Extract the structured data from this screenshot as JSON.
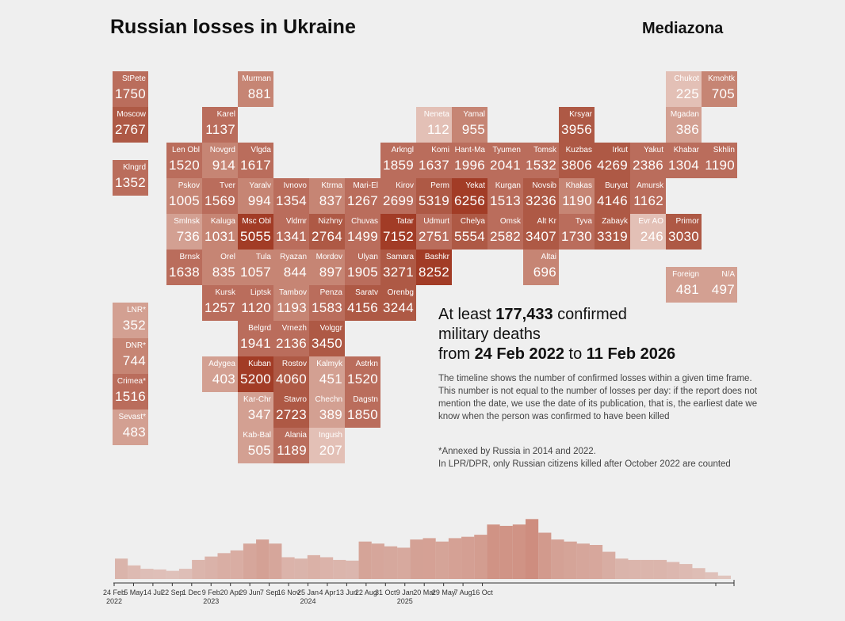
{
  "title": "Russian losses in Ukraine",
  "brand": "Mediazona",
  "headline": {
    "p1": "At least ",
    "total": "177,433",
    "p2": " confirmed",
    "p3": "military deaths",
    "p4": "from ",
    "start": "24 Feb 2022",
    "p5": " to ",
    "end": "11 Feb 2026"
  },
  "note": "The timeline shows the number of confirmed losses within a given time frame. This number is not equal to the number of losses per day: if the report does not mention the date, we use the date of its publication, that is, the earliest date we know when the person was confirmed to have been killed",
  "note2a": "*Annexed by Russia in 2014 and 2022.",
  "note2b": "In LPR/DPR, only Russian citizens killed after October 2022 are counted",
  "colors": {
    "shades": [
      "#e3c0b6",
      "#d3a092",
      "#c68574",
      "#ba6d5c",
      "#ae5945",
      "#a23c26"
    ],
    "bars": "#c9806f"
  },
  "chart_data": [
    {
      "type": "heatmap",
      "subtype": "tile-map",
      "regions": [
        {
          "name": "StPete",
          "value": 1750,
          "shade": 3
        },
        {
          "name": "Moscow",
          "value": 2767,
          "shade": 4
        },
        {
          "name": "Klngrd",
          "value": 1352,
          "shade": 3
        },
        {
          "name": "Murman",
          "value": 881,
          "shade": 2
        },
        {
          "name": "Karel",
          "value": 1137,
          "shade": 3
        },
        {
          "name": "Len Obl",
          "value": 1520,
          "shade": 3
        },
        {
          "name": "Novgrd",
          "value": 914,
          "shade": 2
        },
        {
          "name": "Vlgda",
          "value": 1617,
          "shade": 3
        },
        {
          "name": "Pskov",
          "value": 1005,
          "shade": 2
        },
        {
          "name": "Tver",
          "value": 1569,
          "shade": 3
        },
        {
          "name": "Yaralv",
          "value": 994,
          "shade": 2
        },
        {
          "name": "Ivnovo",
          "value": 1354,
          "shade": 3
        },
        {
          "name": "Ktrma",
          "value": 837,
          "shade": 2
        },
        {
          "name": "Mari-El",
          "value": 1267,
          "shade": 3
        },
        {
          "name": "Smlnsk",
          "value": 736,
          "shade": 1
        },
        {
          "name": "Kaluga",
          "value": 1031,
          "shade": 2
        },
        {
          "name": "Msc Obl",
          "value": 5055,
          "shade": 5
        },
        {
          "name": "Vldmr",
          "value": 1341,
          "shade": 3
        },
        {
          "name": "Nizhny",
          "value": 2764,
          "shade": 4
        },
        {
          "name": "Chuvas",
          "value": 1499,
          "shade": 3
        },
        {
          "name": "Brnsk",
          "value": 1638,
          "shade": 3
        },
        {
          "name": "Orel",
          "value": 835,
          "shade": 2
        },
        {
          "name": "Tula",
          "value": 1057,
          "shade": 2
        },
        {
          "name": "Ryazan",
          "value": 844,
          "shade": 2
        },
        {
          "name": "Mordov",
          "value": 897,
          "shade": 2
        },
        {
          "name": "Ulyan",
          "value": 1905,
          "shade": 3
        },
        {
          "name": "Kursk",
          "value": 1257,
          "shade": 3
        },
        {
          "name": "Liptsk",
          "value": 1120,
          "shade": 3
        },
        {
          "name": "Tambov",
          "value": 1193,
          "shade": 2
        },
        {
          "name": "Penza",
          "value": 1583,
          "shade": 3
        },
        {
          "name": "Saratv",
          "value": 4156,
          "shade": 4
        },
        {
          "name": "Orenbg",
          "value": 3244,
          "shade": 4
        },
        {
          "name": "Belgrd",
          "value": 1941,
          "shade": 3
        },
        {
          "name": "Vrnezh",
          "value": 2136,
          "shade": 3
        },
        {
          "name": "Volggr",
          "value": 3450,
          "shade": 4
        },
        {
          "name": "Adygea",
          "value": 403,
          "shade": 1
        },
        {
          "name": "Kuban",
          "value": 5200,
          "shade": 5
        },
        {
          "name": "Rostov",
          "value": 4060,
          "shade": 4
        },
        {
          "name": "Kalmyk",
          "value": 451,
          "shade": 1
        },
        {
          "name": "Astrkn",
          "value": 1520,
          "shade": 3
        },
        {
          "name": "Kar-Chr",
          "value": 347,
          "shade": 1
        },
        {
          "name": "Stavro",
          "value": 2723,
          "shade": 4
        },
        {
          "name": "Chechn",
          "value": 389,
          "shade": 1
        },
        {
          "name": "Dagstn",
          "value": 1850,
          "shade": 3
        },
        {
          "name": "Kab-Bal",
          "value": 505,
          "shade": 1
        },
        {
          "name": "Alania",
          "value": 1189,
          "shade": 3
        },
        {
          "name": "Ingush",
          "value": 207,
          "shade": 0
        },
        {
          "name": "LNR*",
          "value": 352,
          "shade": 1
        },
        {
          "name": "DNR*",
          "value": 744,
          "shade": 2
        },
        {
          "name": "Crimea*",
          "value": 1516,
          "shade": 3
        },
        {
          "name": "Sevast*",
          "value": 483,
          "shade": 1
        },
        {
          "name": "Neneta",
          "value": 112,
          "shade": 0
        },
        {
          "name": "Yamal",
          "value": 955,
          "shade": 2
        },
        {
          "name": "Krsyar",
          "value": 3956,
          "shade": 4
        },
        {
          "name": "Chukot",
          "value": 225,
          "shade": 0
        },
        {
          "name": "Kmohtk",
          "value": 705,
          "shade": 2
        },
        {
          "name": "Mgadan",
          "value": 386,
          "shade": 1
        },
        {
          "name": "Arkngl",
          "value": 1859,
          "shade": 3
        },
        {
          "name": "Komi",
          "value": 1637,
          "shade": 3
        },
        {
          "name": "Hant-Ma",
          "value": 1996,
          "shade": 3
        },
        {
          "name": "Tyumen",
          "value": 2041,
          "shade": 3
        },
        {
          "name": "Tomsk",
          "value": 1532,
          "shade": 3
        },
        {
          "name": "Kuzbas",
          "value": 3806,
          "shade": 4
        },
        {
          "name": "Irkut",
          "value": 4269,
          "shade": 4
        },
        {
          "name": "Yakut",
          "value": 2386,
          "shade": 3
        },
        {
          "name": "Khabar",
          "value": 1304,
          "shade": 3
        },
        {
          "name": "Skhlin",
          "value": 1190,
          "shade": 3
        },
        {
          "name": "Kirov",
          "value": 2699,
          "shade": 3
        },
        {
          "name": "Perm",
          "value": 5319,
          "shade": 4
        },
        {
          "name": "Yekat",
          "value": 6256,
          "shade": 5
        },
        {
          "name": "Kurgan",
          "value": 1513,
          "shade": 3
        },
        {
          "name": "Novsib",
          "value": 3236,
          "shade": 4
        },
        {
          "name": "Khakas",
          "value": 1190,
          "shade": 2
        },
        {
          "name": "Buryat",
          "value": 4146,
          "shade": 4
        },
        {
          "name": "Amursk",
          "value": 1162,
          "shade": 3
        },
        {
          "name": "Tatar",
          "value": 7152,
          "shade": 5
        },
        {
          "name": "Udmurt",
          "value": 2751,
          "shade": 3
        },
        {
          "name": "Chelya",
          "value": 5554,
          "shade": 4
        },
        {
          "name": "Omsk",
          "value": 2582,
          "shade": 3
        },
        {
          "name": "Alt Kr",
          "value": 3407,
          "shade": 4
        },
        {
          "name": "Tyva",
          "value": 1730,
          "shade": 3
        },
        {
          "name": "Zabayk",
          "value": 3319,
          "shade": 4
        },
        {
          "name": "Evr AO",
          "value": 246,
          "shade": 0
        },
        {
          "name": "Primor",
          "value": 3030,
          "shade": 4
        },
        {
          "name": "Samara",
          "value": 3271,
          "shade": 4
        },
        {
          "name": "Bashkr",
          "value": 8252,
          "shade": 5
        },
        {
          "name": "Altai",
          "value": 696,
          "shade": 2
        },
        {
          "name": "Foreign",
          "value": 481,
          "shade": 1
        },
        {
          "name": "N/A",
          "value": 497,
          "shade": 1
        }
      ]
    },
    {
      "type": "bar",
      "x_label": "",
      "y_label": "",
      "tick_labels": [
        "24 Feb",
        "5 May",
        "14 Jul",
        "22 Sep",
        "1 Dec",
        "9 Feb",
        "20 Apr",
        "29 Jun",
        "7 Sep",
        "16 Nov",
        "25 Jan",
        "4 Apr",
        "13 Jun",
        "22 Aug",
        "31 Oct",
        "9 Jan",
        "20 Mar",
        "29 May",
        "7 Aug",
        "16 Oct"
      ],
      "year_labels": [
        {
          "tick": 0,
          "year": "2022"
        },
        {
          "tick": 5,
          "year": "2023"
        },
        {
          "tick": 10,
          "year": "2024"
        },
        {
          "tick": 15,
          "year": "2025"
        }
      ],
      "months": [
        "2022-03",
        "2022-04",
        "2022-05",
        "2022-06",
        "2022-07",
        "2022-08",
        "2022-09",
        "2022-10",
        "2022-11",
        "2022-12",
        "2023-01",
        "2023-02",
        "2023-03",
        "2023-04",
        "2023-05",
        "2023-06",
        "2023-07",
        "2023-08",
        "2023-09",
        "2023-10",
        "2023-11",
        "2023-12",
        "2024-01",
        "2024-02",
        "2024-03",
        "2024-04",
        "2024-05",
        "2024-06",
        "2024-07",
        "2024-08",
        "2024-09",
        "2024-10",
        "2024-11",
        "2024-12",
        "2025-01",
        "2025-02",
        "2025-03",
        "2025-04",
        "2025-05",
        "2025-06",
        "2025-07",
        "2025-08",
        "2025-09",
        "2025-10",
        "2025-11",
        "2025-12",
        "2026-01",
        "2026-02"
      ],
      "relative_values": [
        30,
        20,
        15,
        14,
        12,
        15,
        28,
        33,
        38,
        42,
        52,
        58,
        52,
        32,
        30,
        35,
        32,
        28,
        27,
        55,
        52,
        48,
        46,
        58,
        60,
        55,
        60,
        62,
        65,
        80,
        78,
        80,
        88,
        68,
        58,
        55,
        52,
        50,
        40,
        30,
        28,
        28,
        28,
        25,
        22,
        16,
        10,
        5
      ]
    }
  ]
}
